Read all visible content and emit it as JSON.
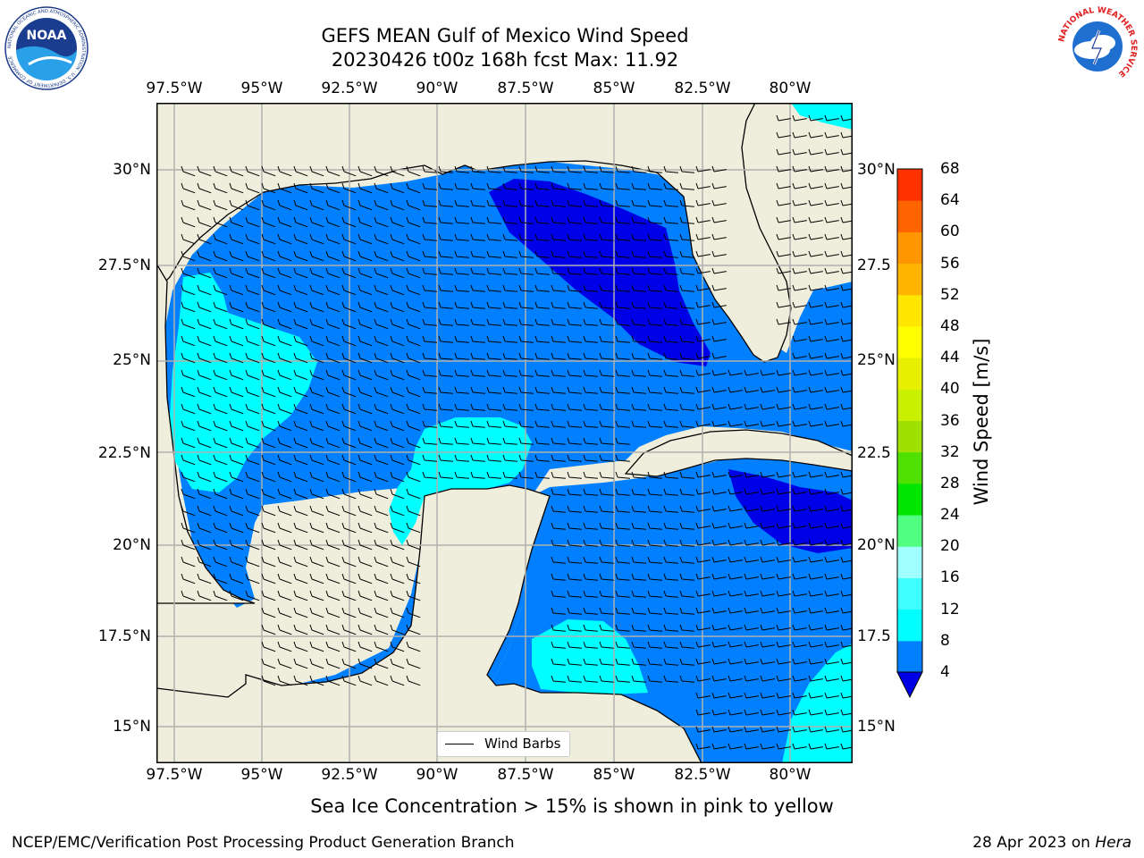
{
  "header": {
    "title_line1": "GEFS MEAN Gulf of Mexico Wind Speed",
    "title_line2": "20230426 t00z 168h fcst   Max: 11.92"
  },
  "map": {
    "lon_ticks": [
      "97.5°W",
      "95°W",
      "92.5°W",
      "90°W",
      "87.5°W",
      "85°W",
      "82.5°W",
      "80°W"
    ],
    "lat_ticks_left": [
      "30°N",
      "27.5°N",
      "25°N",
      "22.5°N",
      "20°N",
      "17.5°N",
      "15°N"
    ],
    "lat_ticks_right": [
      "30°N",
      "27.5",
      "25°N",
      "22.5",
      "20°N",
      "17.5",
      "15°N"
    ],
    "legend_label": "Wind Barbs",
    "colors": {
      "land": "#efeedc",
      "ocean_4_8": "#0080ff",
      "ocean_0_4": "#0000e6",
      "ocean_8_12": "#00ffff",
      "grid": "#b0b0b0"
    }
  },
  "colorbar": {
    "label": "Wind Speed [m/s]",
    "ticks": [
      "4",
      "8",
      "12",
      "16",
      "20",
      "24",
      "28",
      "32",
      "36",
      "40",
      "44",
      "48",
      "52",
      "56",
      "60",
      "64",
      "68"
    ],
    "colors": [
      "#0080ff",
      "#00ffff",
      "#40ffff",
      "#a0ffff",
      "#50ff80",
      "#00e600",
      "#50e000",
      "#a0e000",
      "#c8f000",
      "#e6f000",
      "#ffff00",
      "#ffe600",
      "#ffb400",
      "#ff9600",
      "#ff6400",
      "#ff3200",
      "#ff0000"
    ]
  },
  "footer": {
    "note": "Sea Ice Concentration > 15% is shown in pink to yellow",
    "credit": "NCEP/EMC/Verification Post Processing Product Generation Branch",
    "date": "28 Apr 2023 on ",
    "machine": "Hera"
  },
  "logos": {
    "noaa": "NOAA",
    "noaa_ring": "NATIONAL OCEANIC AND ATMOSPHERIC ADMINISTRATION · U.S. DEPARTMENT OF COMMERCE",
    "nws_ring": "NATIONAL WEATHER SERVICE"
  }
}
